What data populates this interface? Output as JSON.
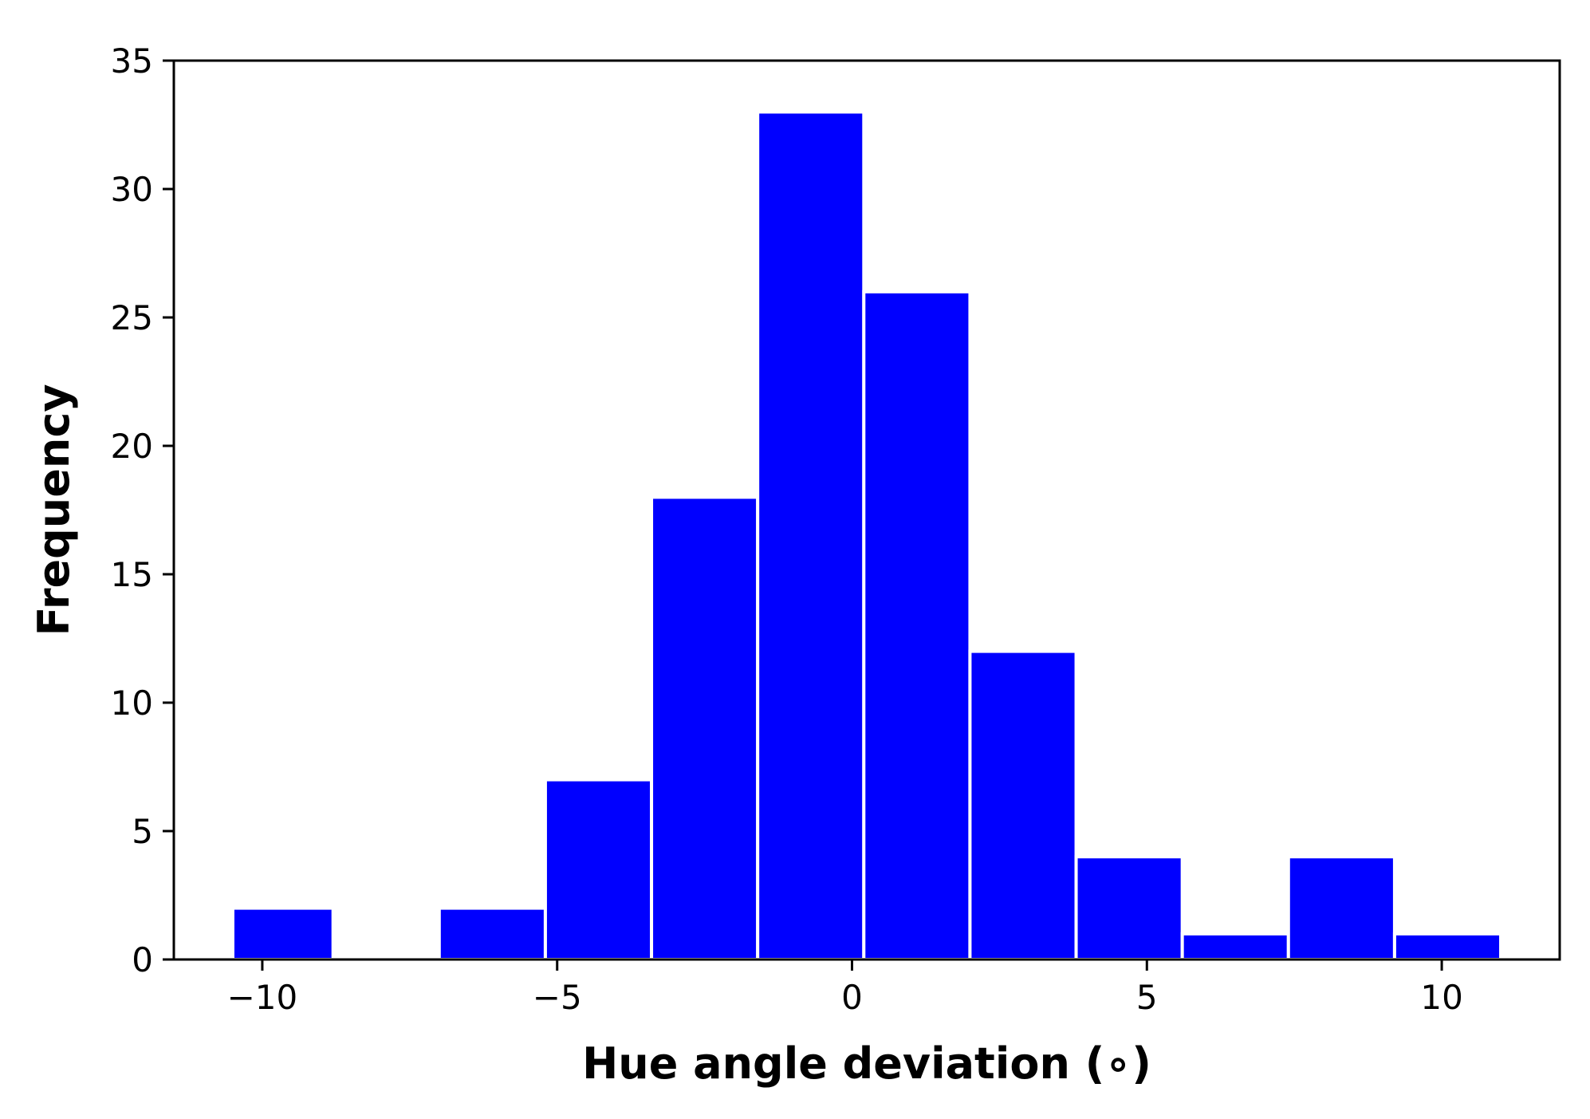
{
  "chart_data": {
    "type": "bar",
    "title": "",
    "xlabel": "Hue angle deviation ($^\\circ$)",
    "xlabel_display": "Hue angle deviation (∘)",
    "ylabel": "Frequency",
    "xlim": [
      -11.5,
      12.0
    ],
    "ylim": [
      0,
      35
    ],
    "xticks": [
      -10,
      -5,
      0,
      5,
      10
    ],
    "xtick_labels": [
      "−10",
      "−5",
      "0",
      "5",
      "10"
    ],
    "yticks": [
      0,
      5,
      10,
      15,
      20,
      25,
      30,
      35
    ],
    "ytick_labels": [
      "0",
      "5",
      "10",
      "15",
      "20",
      "25",
      "30",
      "35"
    ],
    "bins": [
      {
        "x0": -10.5,
        "x1": -8.8,
        "count": 2
      },
      {
        "x0": -8.8,
        "x1": -7.0,
        "count": 0
      },
      {
        "x0": -7.0,
        "x1": -5.2,
        "count": 2
      },
      {
        "x0": -5.2,
        "x1": -3.4,
        "count": 7
      },
      {
        "x0": -3.4,
        "x1": -1.6,
        "count": 18
      },
      {
        "x0": -1.6,
        "x1": 0.2,
        "count": 33
      },
      {
        "x0": 0.2,
        "x1": 2.0,
        "count": 26
      },
      {
        "x0": 2.0,
        "x1": 3.8,
        "count": 12
      },
      {
        "x0": 3.8,
        "x1": 5.6,
        "count": 4
      },
      {
        "x0": 5.6,
        "x1": 7.4,
        "count": 1
      },
      {
        "x0": 7.4,
        "x1": 9.2,
        "count": 4
      },
      {
        "x0": 9.2,
        "x1": 11.0,
        "count": 1
      }
    ],
    "bar_color": "#0000ff",
    "edge_color": "#ffffff",
    "grid": false,
    "legend": "none"
  }
}
